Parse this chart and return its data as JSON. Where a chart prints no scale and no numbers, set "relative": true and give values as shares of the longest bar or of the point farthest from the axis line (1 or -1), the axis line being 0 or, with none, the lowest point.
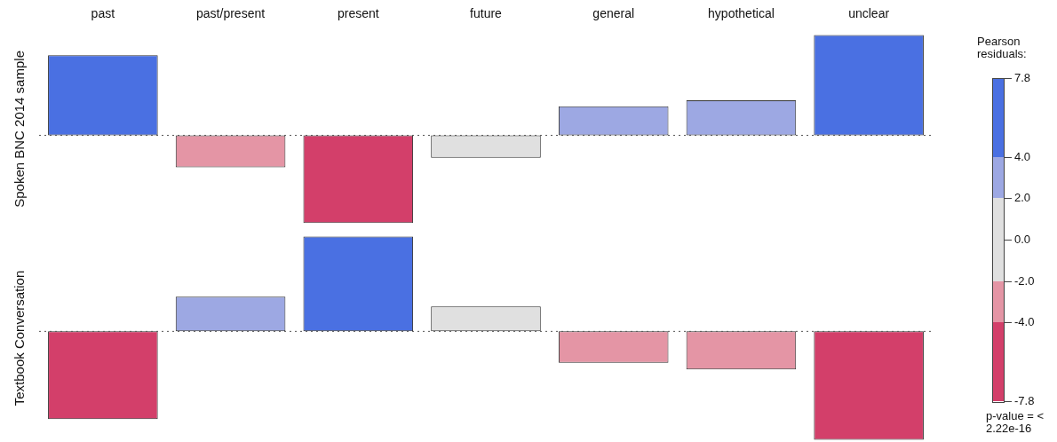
{
  "chart_data": [
    {
      "type": "bar",
      "relative": true,
      "ylabel": "Spoken BNC 2014 sample",
      "categories": [
        "past",
        "past/present",
        "present",
        "future",
        "general",
        "hypothetical",
        "unclear"
      ],
      "values": [
        0.8,
        -0.32,
        -0.875,
        -0.225,
        0.29,
        0.35,
        1
      ],
      "colors": [
        "#4a70e2",
        "#e495a5",
        "#d33f6a",
        "#e0e0e0",
        "#9da8e3",
        "#9da8e3",
        "#4a70e2"
      ],
      "clabel": "Pearson residuals:",
      "clim": [
        -7.8,
        7.8
      ],
      "cticks": [
        {
          "value": 7.8,
          "label": "7.8"
        },
        {
          "value": 4,
          "label": "4.0"
        },
        {
          "value": 2,
          "label": "2.0"
        },
        {
          "value": 0,
          "label": "0.0"
        },
        {
          "value": -2,
          "label": "-2.0"
        },
        {
          "value": -4,
          "label": "-4.0"
        },
        {
          "value": -7.8,
          "label": "-7.8"
        }
      ],
      "ref_lines": [
        {
          "axis": "y",
          "value": 0,
          "line_style": "dotted",
          "color": "#555555"
        }
      ],
      "grid": false,
      "legend": false
    },
    {
      "type": "bar",
      "relative": true,
      "ylabel": "Textbook Conversation",
      "categories": [
        null,
        null,
        null,
        null,
        null,
        null,
        null
      ],
      "tick_labels": false,
      "ref_lines": [
        {
          "axis": "y",
          "value": 0,
          "line_style": "dotted",
          "color": "#555555"
        }
      ],
      "values": [
        -0.81,
        0.32,
        0.875,
        0.23,
        -0.29,
        -0.35,
        -1
      ],
      "colors": [
        "#d33f6a",
        "#9da8e3",
        "#4a70e2",
        "#e0e0e0",
        "#e495a5",
        "#e495a5",
        "#d33f6a"
      ],
      "annotations": [
        "p-value = < 2.22e-16"
      ],
      "grid": false,
      "legend": false
    }
  ]
}
